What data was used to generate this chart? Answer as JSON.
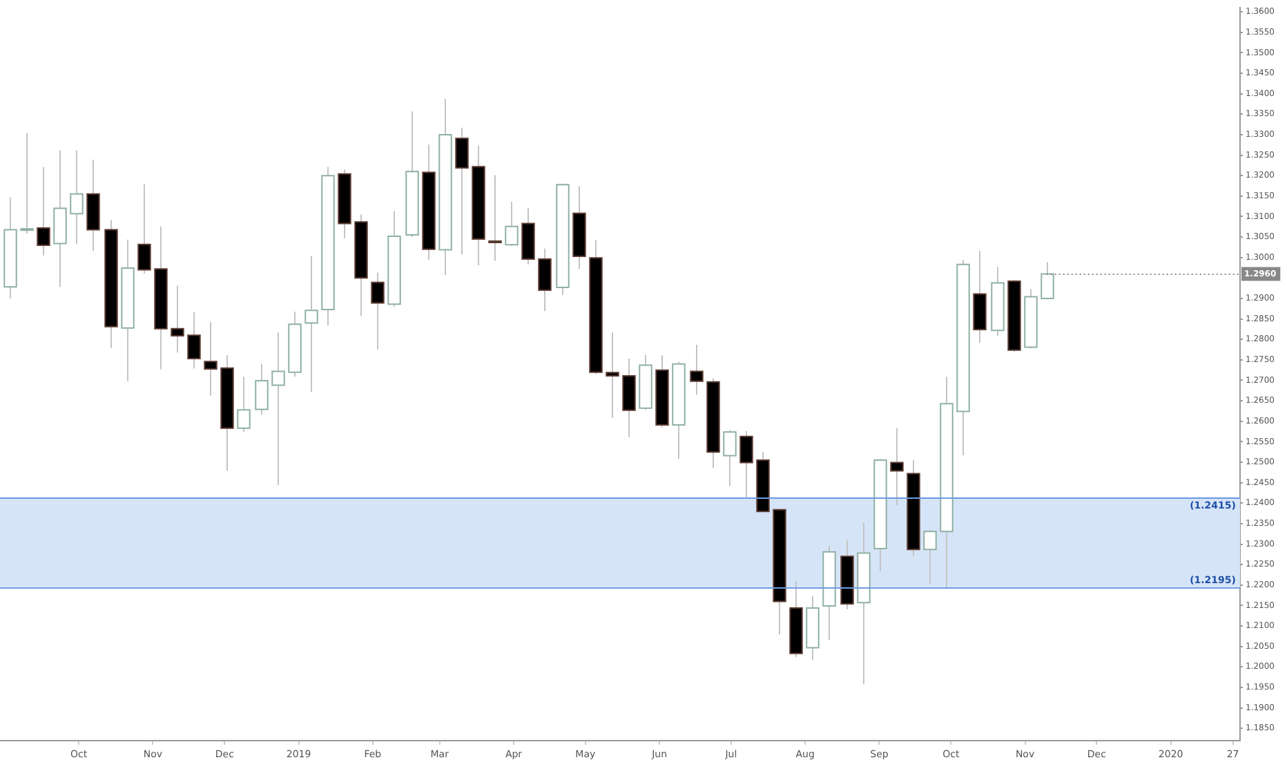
{
  "chart_data": {
    "type": "candlestick",
    "x": [
      "2018-09-02",
      "2018-09-09",
      "2018-09-16",
      "2018-09-23",
      "2018-09-30",
      "2018-10-07",
      "2018-10-14",
      "2018-10-21",
      "2018-10-28",
      "2018-11-04",
      "2018-11-11",
      "2018-11-18",
      "2018-11-25",
      "2018-12-02",
      "2018-12-09",
      "2018-12-16",
      "2018-12-23",
      "2018-12-30",
      "2019-01-06",
      "2019-01-13",
      "2019-01-20",
      "2019-01-27",
      "2019-02-03",
      "2019-02-10",
      "2019-02-17",
      "2019-02-24",
      "2019-03-03",
      "2019-03-10",
      "2019-03-17",
      "2019-03-24",
      "2019-03-31",
      "2019-04-07",
      "2019-04-14",
      "2019-04-21",
      "2019-04-28",
      "2019-05-05",
      "2019-05-12",
      "2019-05-19",
      "2019-05-26",
      "2019-06-02",
      "2019-06-09",
      "2019-06-16",
      "2019-06-23",
      "2019-06-30",
      "2019-07-07",
      "2019-07-14",
      "2019-07-21",
      "2019-07-28",
      "2019-08-04",
      "2019-08-11",
      "2019-08-18",
      "2019-08-25",
      "2019-09-01",
      "2019-09-08",
      "2019-09-15",
      "2019-09-22",
      "2019-09-29",
      "2019-10-06",
      "2019-10-13",
      "2019-10-20",
      "2019-10-27",
      "2019-11-03",
      "2019-11-10"
    ],
    "ohlc": [
      [
        1.2928,
        1.3147,
        1.29,
        1.3068
      ],
      [
        1.3068,
        1.3304,
        1.3058,
        1.307
      ],
      [
        1.3072,
        1.3221,
        1.3005,
        1.303
      ],
      [
        1.3034,
        1.3262,
        1.2928,
        1.312
      ],
      [
        1.3107,
        1.3262,
        1.3033,
        1.3155
      ],
      [
        1.3155,
        1.3239,
        1.3016,
        1.3068
      ],
      [
        1.3068,
        1.3092,
        1.2779,
        1.2831
      ],
      [
        1.2828,
        1.3044,
        1.2698,
        1.2974
      ],
      [
        1.3032,
        1.3179,
        1.2961,
        1.297
      ],
      [
        1.2972,
        1.3076,
        1.2727,
        1.2826
      ],
      [
        1.2826,
        1.2931,
        1.2768,
        1.2809
      ],
      [
        1.281,
        1.2867,
        1.2729,
        1.2753
      ],
      [
        1.2746,
        1.2842,
        1.2663,
        1.2728
      ],
      [
        1.273,
        1.2761,
        1.2479,
        1.2583
      ],
      [
        1.2583,
        1.2709,
        1.2574,
        1.2628
      ],
      [
        1.2629,
        1.274,
        1.2616,
        1.2699
      ],
      [
        1.2688,
        1.2817,
        1.2444,
        1.2722
      ],
      [
        1.272,
        1.2868,
        1.2709,
        1.2837
      ],
      [
        1.284,
        1.3004,
        1.2672,
        1.2871
      ],
      [
        1.2873,
        1.3221,
        1.2834,
        1.32
      ],
      [
        1.3204,
        1.3215,
        1.3047,
        1.3083
      ],
      [
        1.3087,
        1.3105,
        1.2857,
        1.295
      ],
      [
        1.2939,
        1.2963,
        1.2775,
        1.2889
      ],
      [
        1.2886,
        1.3113,
        1.288,
        1.3052
      ],
      [
        1.3055,
        1.3357,
        1.305,
        1.321
      ],
      [
        1.3208,
        1.3276,
        1.2994,
        1.302
      ],
      [
        1.3019,
        1.3387,
        1.2957,
        1.33
      ],
      [
        1.3291,
        1.3317,
        1.3007,
        1.3219
      ],
      [
        1.3222,
        1.3273,
        1.2981,
        1.3045
      ],
      [
        1.304,
        1.3201,
        1.2992,
        1.3039
      ],
      [
        1.3031,
        1.3136,
        1.3028,
        1.3076
      ],
      [
        1.3083,
        1.3121,
        1.2983,
        1.2996
      ],
      [
        1.2996,
        1.3022,
        1.2869,
        1.292
      ],
      [
        1.2927,
        1.318,
        1.2909,
        1.3178
      ],
      [
        1.3108,
        1.3174,
        1.2972,
        1.3003
      ],
      [
        1.2999,
        1.3043,
        1.2715,
        1.272
      ],
      [
        1.2719,
        1.2817,
        1.2608,
        1.2711
      ],
      [
        1.2711,
        1.2753,
        1.2561,
        1.2627
      ],
      [
        1.2632,
        1.2762,
        1.2628,
        1.2737
      ],
      [
        1.2725,
        1.2761,
        1.2585,
        1.2591
      ],
      [
        1.2591,
        1.2745,
        1.2508,
        1.274
      ],
      [
        1.2722,
        1.2787,
        1.2665,
        1.2698
      ],
      [
        1.2696,
        1.2705,
        1.2486,
        1.2525
      ],
      [
        1.2516,
        1.2578,
        1.2442,
        1.2574
      ],
      [
        1.2563,
        1.2576,
        1.2414,
        1.2499
      ],
      [
        1.2505,
        1.2525,
        1.2378,
        1.238
      ],
      [
        1.2384,
        1.2386,
        1.2079,
        1.216
      ],
      [
        1.2144,
        1.221,
        1.2024,
        1.2033
      ],
      [
        1.2047,
        1.2174,
        1.2016,
        1.2144
      ],
      [
        1.2149,
        1.2296,
        1.2066,
        1.2281
      ],
      [
        1.227,
        1.2309,
        1.2141,
        1.2154
      ],
      [
        1.2157,
        1.2353,
        1.1958,
        1.2278
      ],
      [
        1.2289,
        1.2508,
        1.2234,
        1.2505
      ],
      [
        1.2499,
        1.2583,
        1.2394,
        1.2479
      ],
      [
        1.2472,
        1.2505,
        1.227,
        1.2287
      ],
      [
        1.2287,
        1.2335,
        1.2204,
        1.2331
      ],
      [
        1.2331,
        1.2709,
        1.2193,
        1.2643
      ],
      [
        1.2624,
        1.2994,
        1.2517,
        1.2983
      ],
      [
        1.2911,
        1.3016,
        1.2792,
        1.2824
      ],
      [
        1.2822,
        1.2977,
        1.2809,
        1.2938
      ],
      [
        1.2942,
        1.2945,
        1.277,
        1.2774
      ],
      [
        1.2781,
        1.2923,
        1.2778,
        1.2904
      ],
      [
        1.29,
        1.2989,
        1.2898,
        1.296
      ]
    ],
    "xlim": [
      "2018-08-29",
      "2020-01-30"
    ],
    "xticks": [
      {
        "value": "2018-10-01",
        "label": "Oct"
      },
      {
        "value": "2018-11-01",
        "label": "Nov"
      },
      {
        "value": "2018-12-01",
        "label": "Dec"
      },
      {
        "value": "2019-01-01",
        "label": "2019"
      },
      {
        "value": "2019-02-01",
        "label": "Feb"
      },
      {
        "value": "2019-03-01",
        "label": "Mar"
      },
      {
        "value": "2019-04-01",
        "label": "Apr"
      },
      {
        "value": "2019-05-01",
        "label": "May"
      },
      {
        "value": "2019-06-01",
        "label": "Jun"
      },
      {
        "value": "2019-07-01",
        "label": "Jul"
      },
      {
        "value": "2019-08-01",
        "label": "Aug"
      },
      {
        "value": "2019-09-01",
        "label": "Sep"
      },
      {
        "value": "2019-10-01",
        "label": "Oct"
      },
      {
        "value": "2019-11-01",
        "label": "Nov"
      },
      {
        "value": "2019-12-01",
        "label": "Dec"
      },
      {
        "value": "2020-01-01",
        "label": "2020"
      },
      {
        "value": "2020-01-27",
        "label": "27"
      }
    ],
    "ylim": [
      1.182,
      1.361
    ],
    "yticks": [
      {
        "value": 1.185,
        "label": "1.1850"
      },
      {
        "value": 1.19,
        "label": "1.1900"
      },
      {
        "value": 1.195,
        "label": "1.1950"
      },
      {
        "value": 1.2,
        "label": "1.2000"
      },
      {
        "value": 1.205,
        "label": "1.2050"
      },
      {
        "value": 1.21,
        "label": "1.2100"
      },
      {
        "value": 1.215,
        "label": "1.2150"
      },
      {
        "value": 1.22,
        "label": "1.2200"
      },
      {
        "value": 1.225,
        "label": "1.2250"
      },
      {
        "value": 1.23,
        "label": "1.2300"
      },
      {
        "value": 1.235,
        "label": "1.2350"
      },
      {
        "value": 1.24,
        "label": "1.2400"
      },
      {
        "value": 1.245,
        "label": "1.2450"
      },
      {
        "value": 1.25,
        "label": "1.2500"
      },
      {
        "value": 1.255,
        "label": "1.2550"
      },
      {
        "value": 1.26,
        "label": "1.2600"
      },
      {
        "value": 1.265,
        "label": "1.2650"
      },
      {
        "value": 1.27,
        "label": "1.2700"
      },
      {
        "value": 1.275,
        "label": "1.2750"
      },
      {
        "value": 1.28,
        "label": "1.2800"
      },
      {
        "value": 1.285,
        "label": "1.2850"
      },
      {
        "value": 1.29,
        "label": "1.2900"
      },
      {
        "value": 1.3,
        "label": "1.3000"
      },
      {
        "value": 1.305,
        "label": "1.3050"
      },
      {
        "value": 1.31,
        "label": "1.3100"
      },
      {
        "value": 1.315,
        "label": "1.3150"
      },
      {
        "value": 1.32,
        "label": "1.3200"
      },
      {
        "value": 1.325,
        "label": "1.3250"
      },
      {
        "value": 1.33,
        "label": "1.3300"
      },
      {
        "value": 1.335,
        "label": "1.3350"
      },
      {
        "value": 1.34,
        "label": "1.3400"
      },
      {
        "value": 1.345,
        "label": "1.3450"
      },
      {
        "value": 1.35,
        "label": "1.3500"
      },
      {
        "value": 1.355,
        "label": "1.3550"
      },
      {
        "value": 1.36,
        "label": "1.3600"
      }
    ],
    "bands": [
      {
        "axis": "y",
        "from": 1.2195,
        "to": 1.2415,
        "color": "#d6e4f8"
      }
    ],
    "ref_lines": [
      {
        "axis": "y",
        "value": 1.2415,
        "label": "(1.2415)",
        "color": "#6e9be3"
      },
      {
        "axis": "y",
        "value": 1.2195,
        "label": "(1.2195)",
        "color": "#6e9be3"
      }
    ],
    "annotations": [
      {
        "text": "1.2960",
        "x": "2019-11-10",
        "y": 1.296
      }
    ]
  }
}
